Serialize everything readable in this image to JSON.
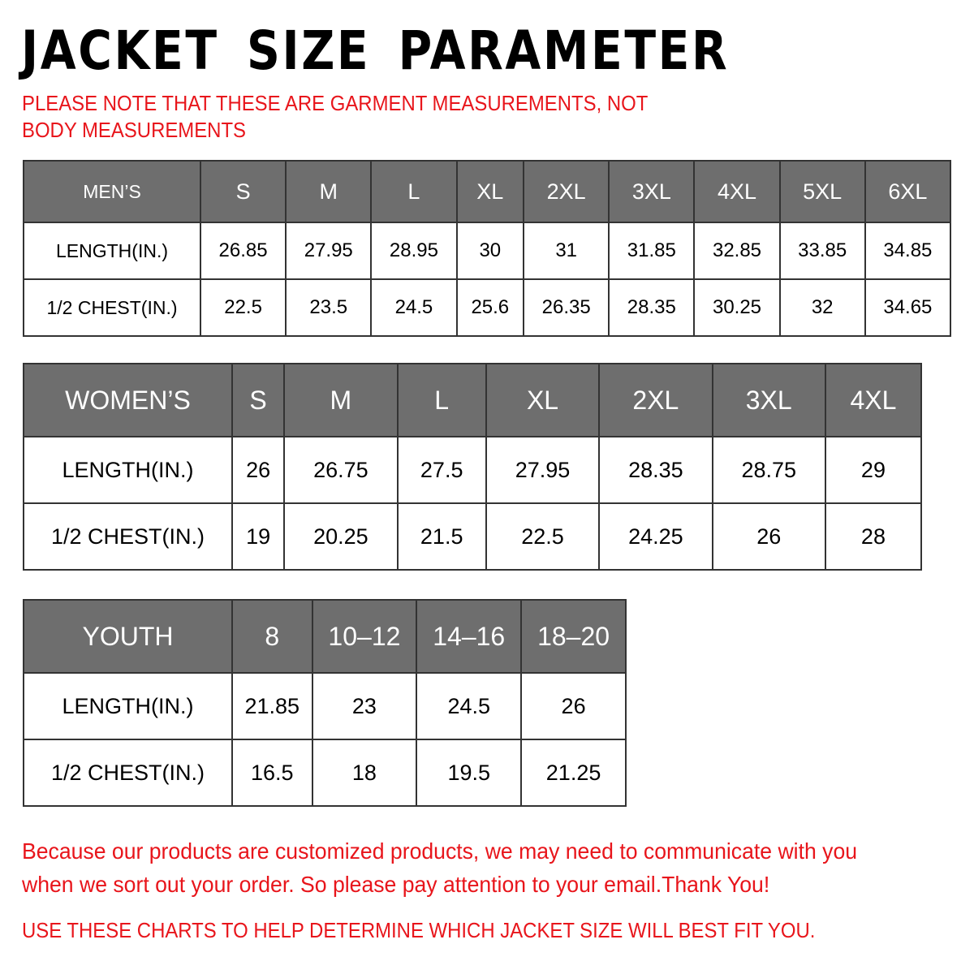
{
  "title": "JACKET SIZE PARAMETER",
  "note": "PLEASE NOTE THAT THESE ARE GARMENT MEASUREMENTS, NOT BODY MEASUREMENTS",
  "colors": {
    "header_bg": "#6e6e6e",
    "accent_red": "#e8151b"
  },
  "tables": [
    {
      "id": "men",
      "header": [
        "MEN’S",
        "S",
        "M",
        "L",
        "XL",
        "2XL",
        "3XL",
        "4XL",
        "5XL",
        "6XL"
      ],
      "rows": [
        [
          "LENGTH(IN.)",
          "26.85",
          "27.95",
          "28.95",
          "30",
          "31",
          "31.85",
          "32.85",
          "33.85",
          "34.85"
        ],
        [
          "1/2 CHEST(IN.)",
          "22.5",
          "23.5",
          "24.5",
          "25.6",
          "26.35",
          "28.35",
          "30.25",
          "32",
          "34.65"
        ]
      ]
    },
    {
      "id": "women",
      "header": [
        "WOMEN’S",
        "S",
        "M",
        "L",
        "XL",
        "2XL",
        "3XL",
        "4XL"
      ],
      "rows": [
        [
          "LENGTH(IN.)",
          "26",
          "26.75",
          "27.5",
          "27.95",
          "28.35",
          "28.75",
          "29"
        ],
        [
          "1/2 CHEST(IN.)",
          "19",
          "20.25",
          "21.5",
          "22.5",
          "24.25",
          "26",
          "28"
        ]
      ]
    },
    {
      "id": "youth",
      "header": [
        "YOUTH",
        "8",
        "10–12",
        "14–16",
        "18–20"
      ],
      "rows": [
        [
          "LENGTH(IN.)",
          "21.85",
          "23",
          "24.5",
          "26"
        ],
        [
          "1/2 CHEST(IN.)",
          "16.5",
          "18",
          "19.5",
          "21.25"
        ]
      ]
    }
  ],
  "footer": "Because our products are customized products, we may need to communicate with you when we sort out your order. So please pay attention to your email.Thank You!",
  "footer2": "USE THESE CHARTS TO HELP DETERMINE WHICH JACKET SIZE WILL BEST FIT YOU."
}
